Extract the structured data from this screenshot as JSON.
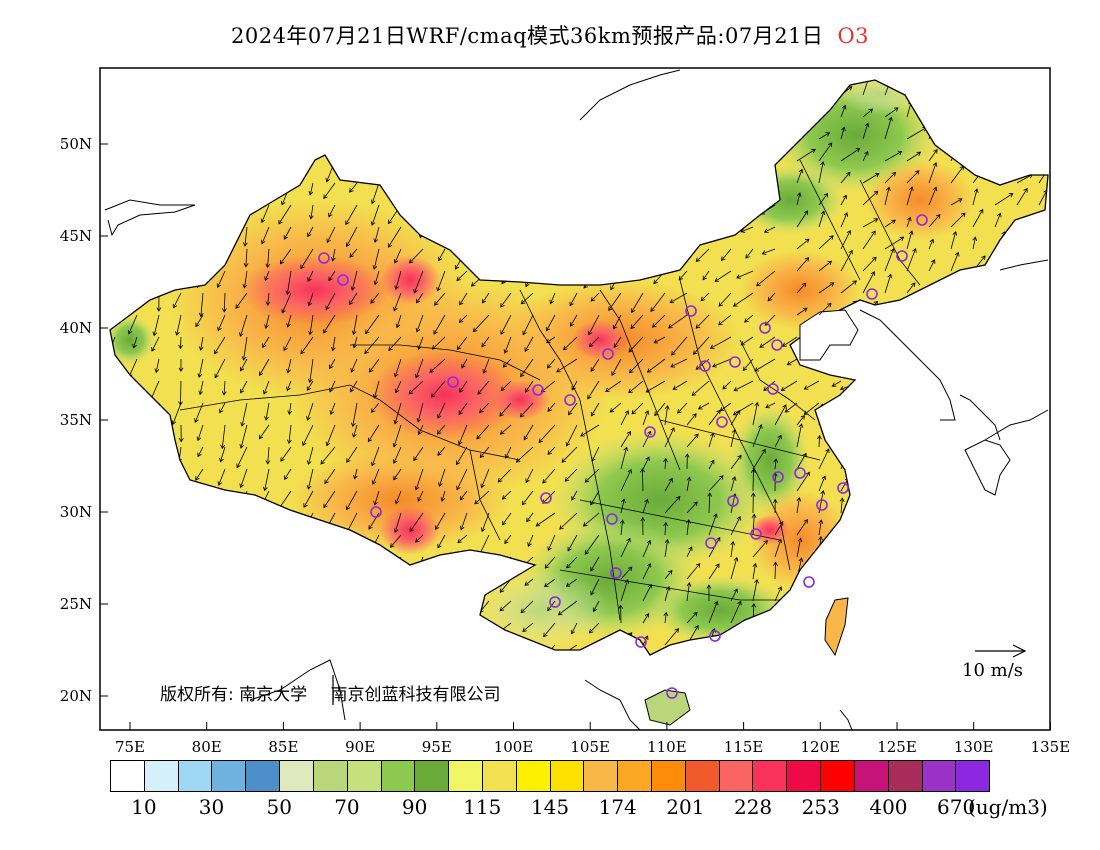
{
  "title": {
    "main": "2024年07月21日WRF/cmaq模式36km预报产品:07月21日",
    "species": "O3"
  },
  "axes": {
    "lat_labels": [
      "50N",
      "45N",
      "40N",
      "35N",
      "30N",
      "25N",
      "20N"
    ],
    "lon_labels": [
      "75E",
      "80E",
      "85E",
      "90E",
      "95E",
      "100E",
      "105E",
      "110E",
      "115E",
      "120E",
      "125E",
      "130E",
      "135E"
    ]
  },
  "legend": {
    "colors": [
      "#ffffff",
      "#d6f0fb",
      "#9fd8f5",
      "#6fb2e0",
      "#4b8ec8",
      "#dfe9bd",
      "#b9d77a",
      "#c5e07c",
      "#8ec94f",
      "#6aab3a",
      "#f1f664",
      "#f2e050",
      "#fdef00",
      "#fce000",
      "#f9b74a",
      "#fba726",
      "#fc8c0a",
      "#f05a2c",
      "#fc6464",
      "#f8325a",
      "#ee0a46",
      "#fe0000",
      "#c8147a",
      "#a82c5a",
      "#9b32c8",
      "#8c28e1"
    ],
    "labels": [
      "10",
      "30",
      "50",
      "70",
      "90",
      "115",
      "145",
      "174",
      "201",
      "228",
      "253",
      "400",
      "670"
    ],
    "units": "(ug/m3)"
  },
  "copyright": {
    "prefix": "版权所有:",
    "org1": "南京大学",
    "org2": "南京创蓝科技有限公司"
  },
  "wind_scale": {
    "label": "10 m/s"
  },
  "map": {
    "region": "China",
    "variable": "O3",
    "stations_marker_color": "#8c28e1"
  }
}
